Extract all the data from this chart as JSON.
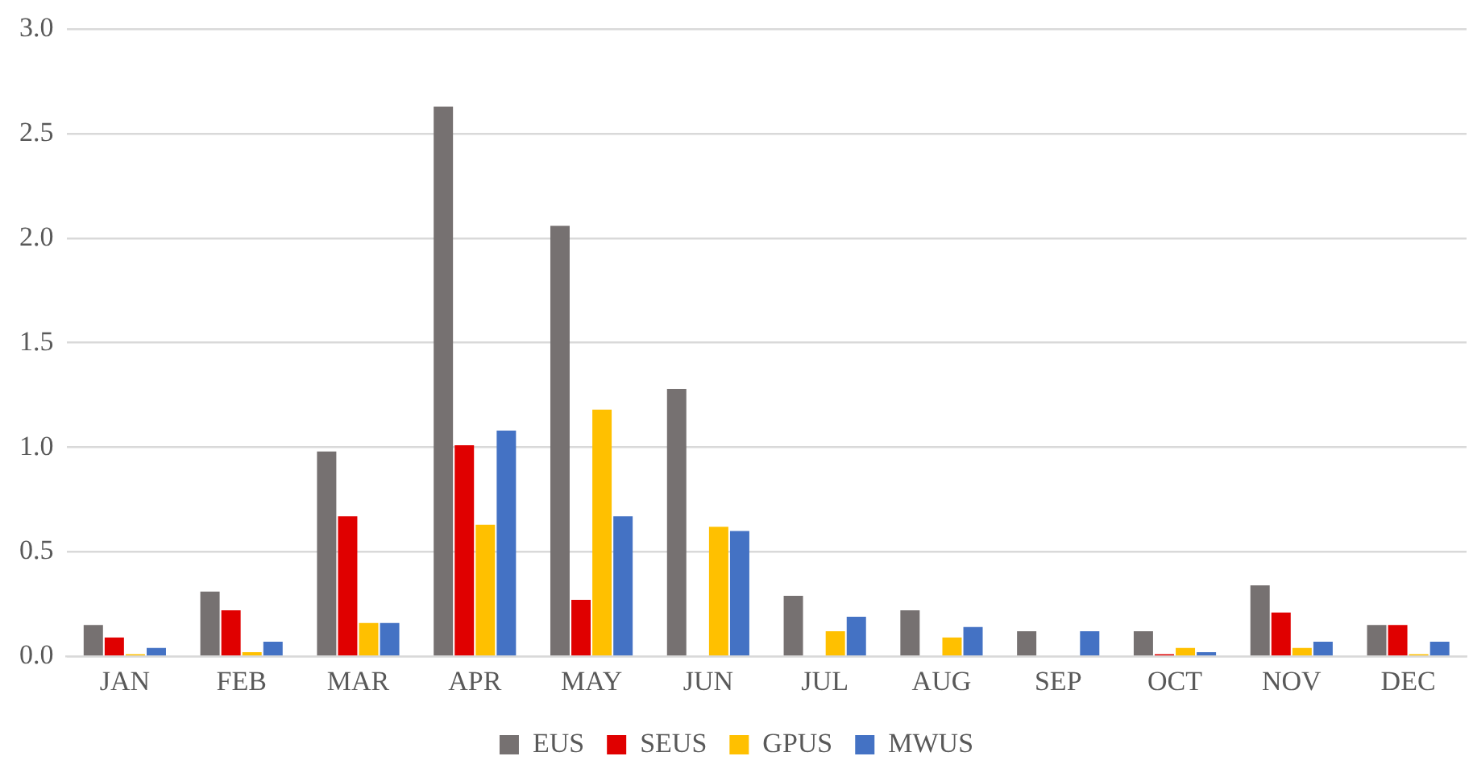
{
  "chart_data": {
    "type": "bar",
    "categories": [
      "JAN",
      "FEB",
      "MAR",
      "APR",
      "MAY",
      "JUN",
      "JUL",
      "AUG",
      "SEP",
      "OCT",
      "NOV",
      "DEC"
    ],
    "series": [
      {
        "name": "EUS",
        "color": "#767171",
        "values": [
          0.15,
          0.31,
          0.98,
          2.63,
          2.06,
          1.28,
          0.29,
          0.22,
          0.12,
          0.12,
          0.34,
          0.15
        ]
      },
      {
        "name": "SEUS",
        "color": "#e00000",
        "values": [
          0.09,
          0.22,
          0.67,
          1.01,
          0.27,
          0,
          0,
          0,
          0,
          0.01,
          0.21,
          0.15
        ]
      },
      {
        "name": "GPUS",
        "color": "#ffc000",
        "values": [
          0.01,
          0.02,
          0.16,
          0.63,
          1.18,
          0.62,
          0.12,
          0.09,
          0,
          0.04,
          0.04,
          0.01
        ]
      },
      {
        "name": "MWUS",
        "color": "#4472c4",
        "values": [
          0.04,
          0.07,
          0.16,
          1.08,
          0.67,
          0.6,
          0.19,
          0.14,
          0.12,
          0.02,
          0.07,
          0.07
        ]
      }
    ],
    "ylim": [
      0,
      3
    ],
    "yticks": [
      {
        "value": 0,
        "label": "0.0"
      },
      {
        "value": 0.5,
        "label": "0.5"
      },
      {
        "value": 1,
        "label": "1.0"
      },
      {
        "value": 1.5,
        "label": "1.5"
      },
      {
        "value": 2,
        "label": "2.0"
      },
      {
        "value": 2.5,
        "label": "2.5"
      },
      {
        "value": 3,
        "label": "3.0"
      }
    ],
    "grid": "y",
    "legend": "bottom"
  }
}
